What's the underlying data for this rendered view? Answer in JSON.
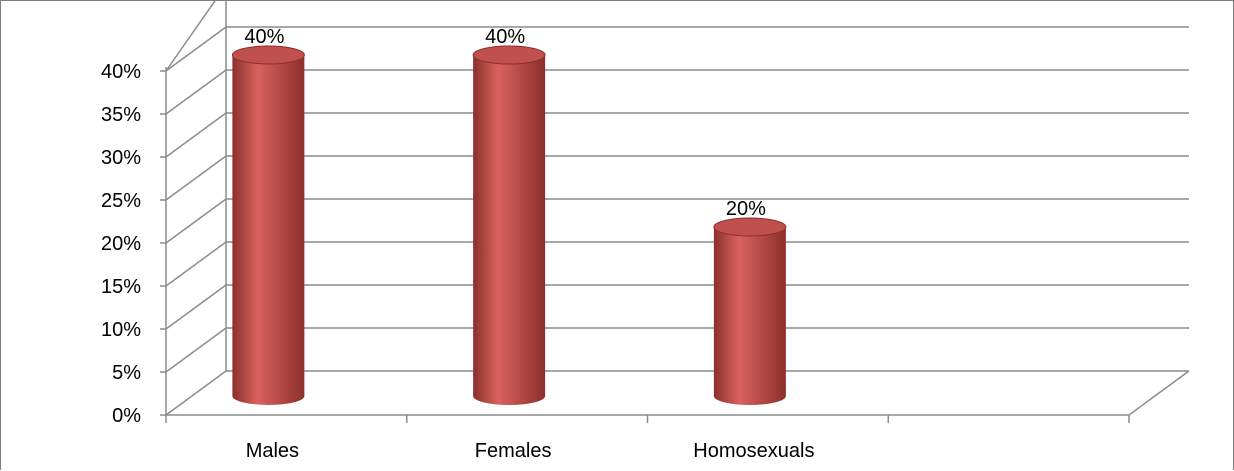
{
  "chart_data": {
    "type": "bar",
    "style": "3d-cylinder",
    "categories": [
      "Males",
      "Females",
      "Homosexuals"
    ],
    "values": [
      40,
      40,
      20
    ],
    "data_labels": [
      "40%",
      "40%",
      "20%"
    ],
    "y_ticks": [
      "0%",
      "5%",
      "10%",
      "15%",
      "20%",
      "25%",
      "30%",
      "35%",
      "40%"
    ],
    "ylim": [
      0,
      40
    ],
    "grid": true,
    "legend": "none",
    "bar_color": "#c0504d",
    "bar_light": "#d9625e",
    "bar_dark": "#8c2f2c",
    "grid_color": "#8c8c8c"
  }
}
